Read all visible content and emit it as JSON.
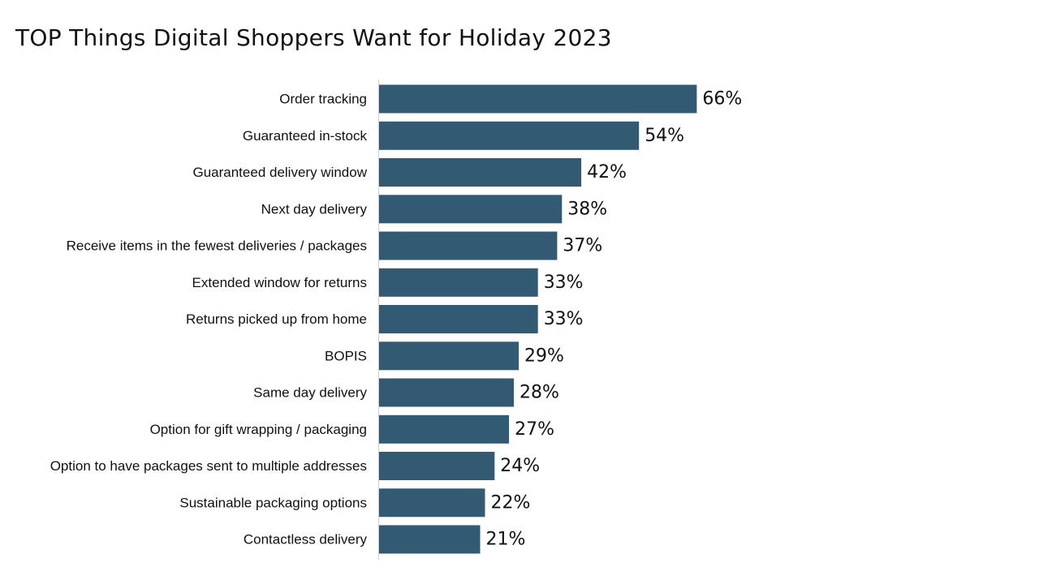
{
  "chart_data": {
    "type": "bar",
    "orientation": "horizontal",
    "title": "TOP Things Digital Shoppers Want for Holiday 2023",
    "categories": [
      "Order tracking",
      "Guaranteed in-stock",
      "Guaranteed delivery window",
      "Next day delivery",
      "Receive items in the fewest deliveries / packages",
      "Extended window for returns",
      "Returns picked up from home",
      "BOPIS",
      "Same day delivery",
      "Option for gift wrapping / packaging",
      "Option to have packages sent to multiple addresses",
      "Sustainable packaging options",
      "Contactless delivery"
    ],
    "values": [
      66,
      54,
      42,
      38,
      37,
      33,
      33,
      29,
      28,
      27,
      24,
      22,
      21
    ],
    "value_labels": [
      "66%",
      "54%",
      "42%",
      "38%",
      "37%",
      "33%",
      "33%",
      "29%",
      "28%",
      "27%",
      "24%",
      "22%",
      "21%"
    ],
    "xlim": [
      0,
      100
    ],
    "grid": false,
    "legend": "none",
    "colors": {
      "bar": "#335a73",
      "axis": "#d0d0d0"
    }
  }
}
